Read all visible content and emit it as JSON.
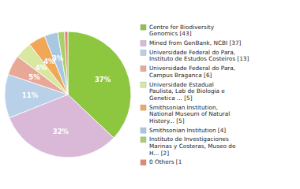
{
  "chart_data": {
    "type": "pie",
    "categories": [
      "Centre for Biodiversity\nGenomics [43]",
      "Mined from GenBank, NCBI [37]",
      "Universidade Federal do Para,\nInstituto de Estudos Costeiros [13]",
      "Universidade Federal do Para,\nCampus Braganca [6]",
      "Universidade Estadual\nPaulista, Lab de Biologia e\nGenetica ... [5]",
      "Smithsonian Institution,\nNational Museum of Natural\nHistory... [5]",
      "Smithsonian Institution [4]",
      "Instituto de Investigaciones\nMarinas y Costeras, Museo de\nH... [2]",
      "0 Others [1"
    ],
    "values": [
      43,
      37,
      13,
      6,
      5,
      5,
      4,
      2,
      1
    ],
    "value_labels": [
      "37%",
      "32%",
      "11%",
      "5%",
      "4%",
      "4%",
      "3%",
      null,
      null
    ],
    "colors": [
      "#8dc63f",
      "#d9b8d8",
      "#b8d0e8",
      "#e8a898",
      "#d8e8a0",
      "#f0a858",
      "#a8c8e0",
      "#a8d068",
      "#e08878"
    ],
    "data_labels": true,
    "legend": "right"
  }
}
